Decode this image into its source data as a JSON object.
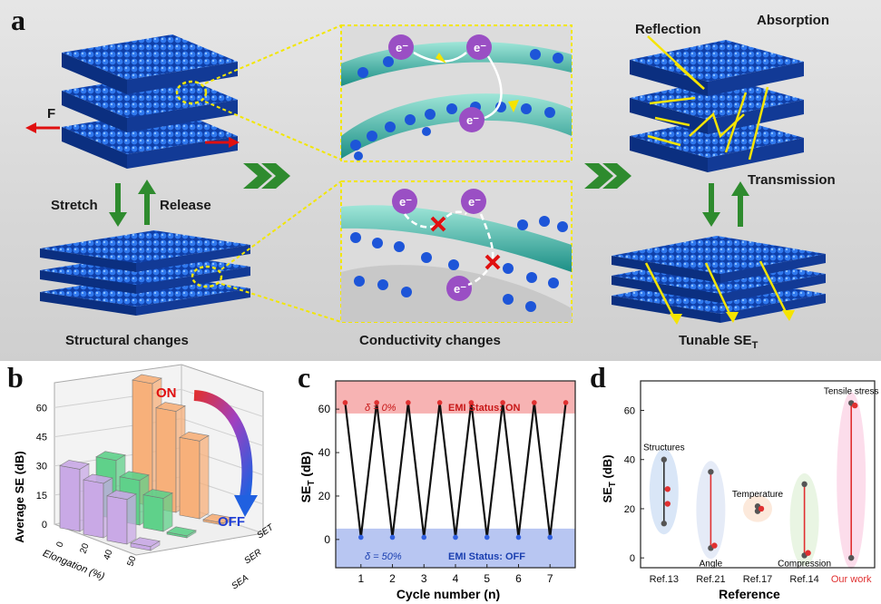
{
  "panel_a": {
    "letter": "a",
    "labels": {
      "force": "F",
      "stretch": "Stretch",
      "release": "Release",
      "structural": "Structural changes",
      "conductivity": "Conductivity changes",
      "tunable": "Tunable SE",
      "tunable_sub": "T",
      "reflection": "Reflection",
      "absorption": "Absorption",
      "transmission": "Transmission",
      "electron": "e⁻"
    },
    "colors": {
      "film": "#1f5fd6",
      "arrow_green": "#2e8b2e",
      "force_red": "#e01010",
      "beam_yellow": "#f5e400"
    }
  },
  "panel_b": {
    "letter": "b",
    "labels": {
      "on": "ON",
      "off": "OFF"
    },
    "chart_data": {
      "type": "bar",
      "ylabel": "Average SE (dB)",
      "xlabel": "Elongation (%)",
      "y_ticks": [
        "0",
        "15",
        "30",
        "45",
        "60"
      ],
      "x_ticks": [
        "0",
        "20",
        "40",
        "50"
      ],
      "series_labels": [
        "SEA",
        "SER",
        "SET"
      ],
      "series": [
        {
          "name": "SEA",
          "color": "#c9a9e6",
          "values": [
            32,
            28,
            23,
            2
          ]
        },
        {
          "name": "SER",
          "color": "#5fd18a",
          "values": [
            30,
            23,
            17,
            1
          ]
        },
        {
          "name": "SET",
          "color": "#f7b07a",
          "values": [
            63,
            52,
            40,
            1
          ]
        }
      ],
      "ylim": [
        0,
        70
      ]
    }
  },
  "panel_c": {
    "letter": "c",
    "chart_data": {
      "type": "line",
      "xlabel": "Cycle number (n)",
      "ylabel": "SE",
      "ylabel_sub": "T",
      "ylabel_unit": " (dB)",
      "x_ticks": [
        1,
        2,
        3,
        4,
        5,
        6,
        7
      ],
      "y_ticks": [
        0,
        20,
        40,
        60
      ],
      "xlim": [
        0.2,
        7.8
      ],
      "ylim": [
        -13,
        73
      ],
      "x": [
        0.5,
        1,
        1.5,
        2,
        2.5,
        3,
        3.5,
        4,
        4.5,
        5,
        5.5,
        6,
        6.5,
        7,
        7.5
      ],
      "y": [
        63,
        1,
        63,
        1,
        63,
        1,
        63,
        1,
        63,
        1,
        63,
        1,
        63,
        1,
        63
      ],
      "on_band": {
        "label_delta": "δ = 0%",
        "label_status": "EMI Status: ON",
        "range": [
          58,
          73
        ],
        "color": "#f7b3b3"
      },
      "off_band": {
        "label_delta": "δ = 50%",
        "label_status": "EMI Status: OFF",
        "range": [
          -13,
          5
        ],
        "color": "#b8c6f2"
      }
    }
  },
  "panel_d": {
    "letter": "d",
    "chart_data": {
      "type": "scatter",
      "xlabel": "Reference",
      "ylabel": "SE",
      "ylabel_sub": "T",
      "ylabel_unit": " (dB)",
      "categories": [
        "Ref.13",
        "Ref.21",
        "Ref.17",
        "Ref.14",
        "Our work"
      ],
      "y_ticks": [
        0,
        20,
        40,
        60
      ],
      "ylim": [
        -4,
        72
      ],
      "groups": [
        {
          "ref": "Ref.13",
          "label": "Structures",
          "min": 14,
          "max": 40,
          "extra": [
            28,
            22
          ],
          "color": "#cfe0f5"
        },
        {
          "ref": "Ref.21",
          "label": "Angle",
          "min": 4,
          "max": 35,
          "extra": [
            5
          ],
          "color": "#dfe6f5"
        },
        {
          "ref": "Ref.17",
          "label": "Temperature",
          "min": 19,
          "max": 21,
          "extra": [
            20
          ],
          "color": "#fbe3d2"
        },
        {
          "ref": "Ref.14",
          "label": "Compression",
          "min": 1,
          "max": 30,
          "extra": [
            2
          ],
          "color": "#e3f3dc"
        },
        {
          "ref": "Our work",
          "label": "Tensile stress",
          "min": 0,
          "max": 63,
          "extra": [
            62
          ],
          "color": "#fbd5e6"
        }
      ],
      "highlight_color": "#e03030"
    }
  }
}
